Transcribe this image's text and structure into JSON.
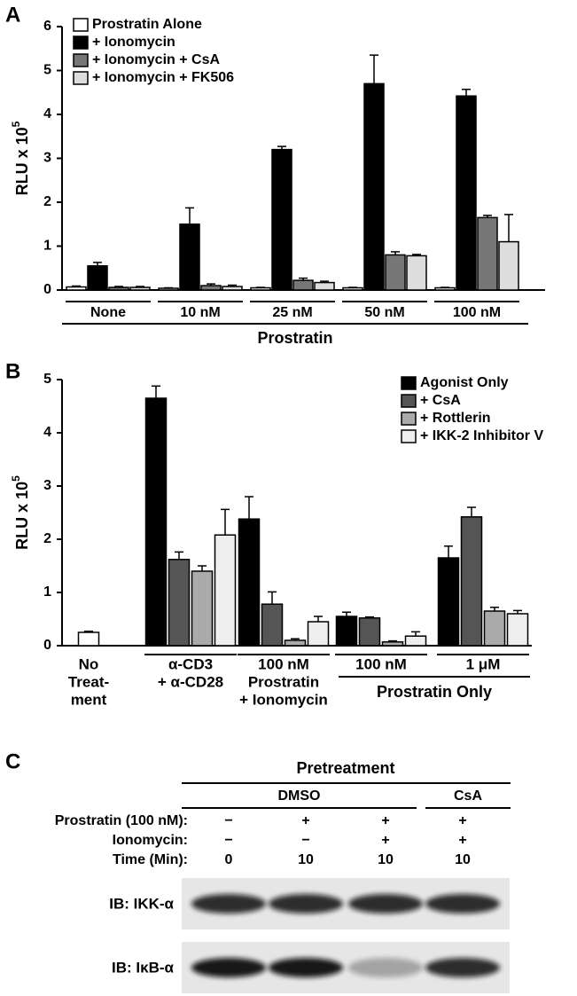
{
  "panel_letters": [
    "A",
    "B",
    "C"
  ],
  "chart_data": [
    {
      "type": "bar",
      "y_label": "RLU x 10",
      "y_label_exponent": "5",
      "x_label": "Prostratin",
      "categories": [
        "None",
        "10 nM",
        "25 nM",
        "50 nM",
        "100 nM"
      ],
      "series": [
        {
          "name": "Prostratin Alone",
          "color": "#ffffff",
          "values": [
            0.07,
            0.04,
            0.05,
            0.05,
            0.05
          ],
          "errors": [
            0.02,
            0.01,
            0.01,
            0.01,
            0.01
          ]
        },
        {
          "name": "+ Ionomycin",
          "color": "#000000",
          "values": [
            0.55,
            1.5,
            3.2,
            4.7,
            4.42
          ],
          "errors": [
            0.08,
            0.37,
            0.07,
            0.65,
            0.15
          ]
        },
        {
          "name": "+ Ionomycin + CsA",
          "color": "#777777",
          "values": [
            0.06,
            0.1,
            0.22,
            0.8,
            1.65
          ],
          "errors": [
            0.02,
            0.04,
            0.05,
            0.07,
            0.05
          ]
        },
        {
          "name": "+ Ionomycin + FK506",
          "color": "#dddddd",
          "values": [
            0.06,
            0.08,
            0.17,
            0.78,
            1.1
          ],
          "errors": [
            0.02,
            0.03,
            0.03,
            0.03,
            0.62
          ]
        }
      ],
      "ylim": [
        0,
        6
      ],
      "yticks": [
        0,
        1,
        2,
        3,
        4,
        5,
        6
      ],
      "legend": "top-left"
    },
    {
      "type": "bar",
      "y_label": "RLU x 10",
      "y_label_exponent": "5",
      "group_label": "Prostratin Only",
      "categories": [
        [
          "No",
          "Treat-",
          "ment"
        ],
        [
          "α-CD3",
          "+ α-CD28"
        ],
        [
          "100 nM",
          "Prostratin",
          "+ Ionomycin"
        ],
        [
          "100 nM"
        ],
        [
          "1 μM"
        ]
      ],
      "series": [
        {
          "name": "Agonist Only",
          "color": "#000000",
          "values": [
            null,
            4.65,
            2.38,
            0.55,
            1.65
          ],
          "errors": [
            null,
            0.23,
            0.42,
            0.08,
            0.22
          ]
        },
        {
          "name": "+ CsA",
          "color": "#555555",
          "values": [
            null,
            1.62,
            0.78,
            0.52,
            2.42
          ],
          "errors": [
            null,
            0.14,
            0.23,
            0.02,
            0.18
          ]
        },
        {
          "name": "+ Rottlerin",
          "color": "#aaaaaa",
          "values": [
            null,
            1.4,
            0.1,
            0.07,
            0.65
          ],
          "errors": [
            null,
            0.1,
            0.03,
            0.02,
            0.07
          ]
        },
        {
          "name": "+ IKK-2 Inhibitor V",
          "color": "#eeeeee",
          "values": [
            null,
            2.08,
            0.45,
            0.18,
            0.6
          ],
          "errors": [
            null,
            0.48,
            0.1,
            0.08,
            0.06
          ]
        },
        {
          "color": "#ffffff",
          "values": [
            0.25,
            null,
            null,
            null,
            null
          ],
          "errors": [
            0.02,
            null,
            null,
            null,
            null
          ]
        }
      ],
      "ylim": [
        0,
        5
      ],
      "yticks": [
        0,
        1,
        2,
        3,
        4,
        5
      ],
      "legend": "top-right"
    }
  ],
  "blot": {
    "header": "Pretreatment",
    "groups": [
      "DMSO",
      "CsA"
    ],
    "rows": [
      {
        "label": "Prostratin (100 nM):",
        "cells": [
          "−",
          "+",
          "+",
          "+"
        ]
      },
      {
        "label": "Ionomycin:",
        "cells": [
          "−",
          "−",
          "+",
          "+"
        ]
      },
      {
        "label": "Time (Min):",
        "cells": [
          "0",
          "10",
          "10",
          "10"
        ]
      }
    ],
    "blots": [
      "IB: IKK-α",
      "IB: IκB-α"
    ]
  }
}
